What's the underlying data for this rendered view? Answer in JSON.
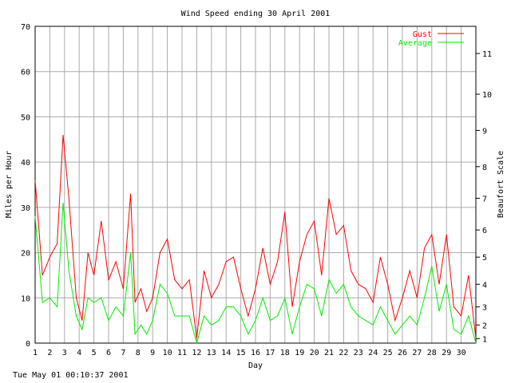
{
  "chart_data": {
    "type": "line",
    "title": "Wind Speed ending 30 April 2001",
    "xlabel": "Day",
    "ylabel": "Miles per Hour",
    "y2label": "Beaufort Scale",
    "xlim": [
      1,
      31
    ],
    "ylim": [
      0,
      70
    ],
    "x_ticks": [
      "1",
      "2",
      "3",
      "4",
      "5",
      "6",
      "7",
      "8",
      "9",
      "10",
      "11",
      "12",
      "13",
      "14",
      "15",
      "16",
      "17",
      "18",
      "19",
      "20",
      "21",
      "22",
      "23",
      "24",
      "25",
      "26",
      "27",
      "28",
      "29",
      "30"
    ],
    "y_ticks": [
      0,
      10,
      20,
      30,
      40,
      50,
      60,
      70
    ],
    "beaufort_ticks": [
      {
        "label": "1",
        "mph": 1
      },
      {
        "label": "2",
        "mph": 4
      },
      {
        "label": "3",
        "mph": 8
      },
      {
        "label": "4",
        "mph": 13
      },
      {
        "label": "5",
        "mph": 19
      },
      {
        "label": "6",
        "mph": 25
      },
      {
        "label": "7",
        "mph": 32
      },
      {
        "label": "8",
        "mph": 39
      },
      {
        "label": "9",
        "mph": 47
      },
      {
        "label": "10",
        "mph": 55
      },
      {
        "label": "11",
        "mph": 64
      }
    ],
    "grid": true,
    "legend_position": "top-right",
    "x": [
      1.0,
      1.5,
      2.0,
      2.5,
      2.9,
      3.3,
      3.8,
      4.2,
      4.6,
      5.0,
      5.5,
      6.0,
      6.5,
      7.0,
      7.5,
      7.8,
      8.2,
      8.6,
      9.0,
      9.5,
      10.0,
      10.5,
      11.0,
      11.5,
      12.0,
      12.5,
      13.0,
      13.5,
      14.0,
      14.5,
      15.0,
      15.5,
      16.0,
      16.5,
      17.0,
      17.5,
      18.0,
      18.5,
      19.0,
      19.5,
      20.0,
      20.5,
      21.0,
      21.5,
      22.0,
      22.5,
      23.0,
      23.5,
      24.0,
      24.5,
      25.0,
      25.5,
      26.0,
      26.5,
      27.0,
      27.5,
      28.0,
      28.5,
      29.0,
      29.5,
      30.0,
      30.5,
      31.0
    ],
    "series": [
      {
        "name": "Gust",
        "color": "#ff0000",
        "values": [
          36,
          15,
          19,
          22,
          46,
          32,
          10,
          5,
          20,
          15,
          27,
          14,
          18,
          12,
          33,
          9,
          12,
          7,
          10,
          20,
          23,
          14,
          12,
          14,
          1,
          16,
          10,
          13,
          18,
          19,
          12,
          6,
          12,
          21,
          13,
          18,
          29,
          8,
          18,
          24,
          27,
          15,
          32,
          24,
          26,
          16,
          13,
          12,
          9,
          19,
          13,
          5,
          10,
          16,
          10,
          21,
          24,
          13,
          24,
          8,
          6,
          15,
          1
        ]
      },
      {
        "name": "Average",
        "color": "#00ee00",
        "values": [
          28,
          9,
          10,
          8,
          31,
          16,
          6,
          3,
          10,
          9,
          10,
          5,
          8,
          6,
          20,
          2,
          4,
          2,
          5,
          13,
          11,
          6,
          6,
          6,
          0,
          6,
          4,
          5,
          8,
          8,
          6,
          2,
          5,
          10,
          5,
          6,
          10,
          2,
          8,
          13,
          12,
          6,
          14,
          11,
          13,
          8,
          6,
          5,
          4,
          8,
          5,
          2,
          4,
          6,
          4,
          10,
          17,
          7,
          13,
          3,
          2,
          6,
          0
        ]
      }
    ]
  },
  "footer": {
    "timestamp": "Tue May 01 00:10:37 2001"
  }
}
